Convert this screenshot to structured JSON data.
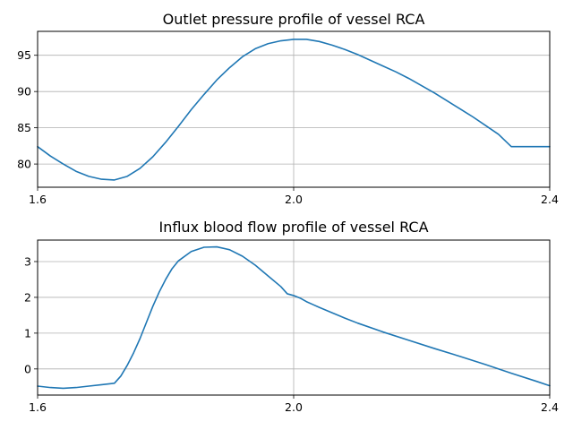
{
  "chart_data": [
    {
      "type": "line",
      "title": "Outlet pressure profile of vessel RCA",
      "xlabel": "",
      "ylabel": "",
      "xlim": [
        1.6,
        2.4
      ],
      "ylim": [
        76.8,
        98.3
      ],
      "xticks": [
        1.6,
        2.0,
        2.4
      ],
      "xtick_labels": [
        "1.6",
        "2.0",
        "2.4"
      ],
      "yticks": [
        80,
        85,
        90,
        95
      ],
      "ytick_labels": [
        "80",
        "85",
        "90",
        "95"
      ],
      "grid": true,
      "color": "#1f77b4",
      "series": [
        {
          "x": [
            1.6,
            1.62,
            1.64,
            1.66,
            1.68,
            1.7,
            1.72,
            1.74,
            1.76,
            1.78,
            1.8,
            1.82,
            1.84,
            1.86,
            1.88,
            1.9,
            1.92,
            1.94,
            1.96,
            1.98,
            2.0,
            2.02,
            2.04,
            2.06,
            2.08,
            2.1,
            2.12,
            2.14,
            2.16,
            2.18,
            2.2,
            2.22,
            2.24,
            2.26,
            2.28,
            2.3,
            2.32,
            2.34,
            2.36,
            2.38,
            2.4
          ],
          "y": [
            82.4,
            81.1,
            80.0,
            79.0,
            78.3,
            77.9,
            77.8,
            78.3,
            79.4,
            81.0,
            83.0,
            85.2,
            87.5,
            89.6,
            91.6,
            93.3,
            94.8,
            95.9,
            96.6,
            97.0,
            97.2,
            97.2,
            96.9,
            96.4,
            95.8,
            95.1,
            94.3,
            93.5,
            92.7,
            91.8,
            90.8,
            89.8,
            88.7,
            87.6,
            86.5,
            85.3,
            84.1,
            82.4,
            82.4,
            82.4,
            82.4
          ]
        }
      ]
    },
    {
      "type": "line",
      "title": "Influx blood flow profile of vessel RCA",
      "xlabel": "",
      "ylabel": "",
      "xlim": [
        1.6,
        2.4
      ],
      "ylim": [
        -0.73,
        3.6
      ],
      "xticks": [
        1.6,
        2.0,
        2.4
      ],
      "xtick_labels": [
        "1.6",
        "2.0",
        "2.4"
      ],
      "yticks": [
        0,
        1,
        2,
        3
      ],
      "ytick_labels": [
        "0",
        "1",
        "2",
        "3"
      ],
      "grid": true,
      "color": "#1f77b4",
      "series": [
        {
          "x": [
            1.6,
            1.62,
            1.64,
            1.66,
            1.68,
            1.7,
            1.72,
            1.73,
            1.74,
            1.75,
            1.76,
            1.77,
            1.78,
            1.79,
            1.8,
            1.81,
            1.82,
            1.84,
            1.86,
            1.88,
            1.9,
            1.92,
            1.94,
            1.96,
            1.98,
            1.99,
            2.0,
            2.01,
            2.02,
            2.03,
            2.04,
            2.06,
            2.08,
            2.1,
            2.14,
            2.18,
            2.22,
            2.26,
            2.3,
            2.34,
            2.38,
            2.4
          ],
          "y": [
            -0.48,
            -0.52,
            -0.54,
            -0.52,
            -0.48,
            -0.44,
            -0.4,
            -0.2,
            0.1,
            0.45,
            0.85,
            1.3,
            1.75,
            2.15,
            2.5,
            2.8,
            3.02,
            3.28,
            3.4,
            3.41,
            3.33,
            3.15,
            2.9,
            2.6,
            2.3,
            2.1,
            2.05,
            1.98,
            1.88,
            1.8,
            1.72,
            1.57,
            1.42,
            1.28,
            1.03,
            0.8,
            0.57,
            0.35,
            0.12,
            -0.12,
            -0.35,
            -0.47
          ]
        }
      ]
    }
  ]
}
